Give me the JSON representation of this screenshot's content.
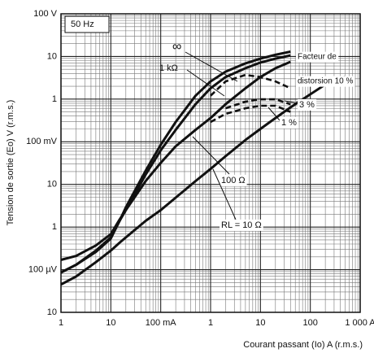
{
  "chart_data": {
    "type": "line",
    "y_label": "Tension de sortie (Eo) V (r.m.s.)",
    "x_label": "Courant passant (Io) A (r.m.s.)",
    "x_scale": "log",
    "y_scale": "log",
    "grid": true,
    "minor_grid": true,
    "xlim": [
      0.001,
      1000
    ],
    "ylim": [
      1e-05,
      100
    ],
    "xticks": [
      {
        "value": 0.001,
        "label": "1"
      },
      {
        "value": 0.01,
        "label": "10"
      },
      {
        "value": 0.1,
        "label": "100 mA"
      },
      1,
      10,
      100,
      {
        "value": 1000,
        "label": "1 000 A"
      }
    ],
    "yticks": [
      {
        "value": 1e-05,
        "label": "10"
      },
      {
        "value": 0.0001,
        "label": "100 µV"
      },
      {
        "value": 0.001,
        "label": "1"
      },
      {
        "value": 0.01,
        "label": "10"
      },
      {
        "value": 0.1,
        "label": "100 mV"
      },
      1,
      10,
      {
        "value": 100,
        "label": "100 V"
      }
    ],
    "annotations": [
      "50 Hz",
      "Facteur de",
      "distorsion 10 %"
    ],
    "x": [
      0.001,
      0.002,
      0.005,
      0.01,
      0.015,
      0.02,
      0.05,
      0.1,
      0.2,
      0.5,
      1,
      2,
      5,
      10,
      20,
      40,
      100,
      200,
      500
    ],
    "series": [
      {
        "name": "∞",
        "color": "#111111",
        "dash": false,
        "values": [
          8.6e-05,
          0.00013,
          0.00026,
          0.00054,
          0.0014,
          0.0029,
          0.021,
          0.085,
          0.29,
          1.2,
          2.6,
          4.4,
          6.9,
          8.9,
          11,
          13,
          null,
          null,
          null
        ]
      },
      {
        "name": "1 kΩ",
        "color": "#111111",
        "dash": false,
        "values": [
          8.6e-05,
          0.00013,
          0.00028,
          0.00057,
          0.0014,
          0.0025,
          0.017,
          0.063,
          0.19,
          0.76,
          1.8,
          3.3,
          5.3,
          7.2,
          8.9,
          10.6,
          null,
          null,
          null
        ]
      },
      {
        "name": "100 Ω",
        "color": "#111111",
        "dash": false,
        "values": [
          0.00017,
          0.00021,
          0.00037,
          0.00068,
          0.0015,
          0.0025,
          0.012,
          0.032,
          0.078,
          0.19,
          0.36,
          0.76,
          1.8,
          3.3,
          5.3,
          7.5,
          null,
          null,
          null
        ]
      },
      {
        "name": "RL = 10 Ω",
        "color": "#111111",
        "dash": false,
        "values": [
          4.5e-05,
          6.9e-05,
          0.00015,
          0.00028,
          0.00043,
          0.00057,
          0.0014,
          0.0025,
          0.0049,
          0.012,
          0.023,
          0.046,
          0.11,
          0.2,
          0.36,
          0.64,
          1.3,
          2.2,
          3.3
        ]
      },
      {
        "color": "#111111",
        "dash": true,
        "values": [
          null,
          null,
          null,
          null,
          null,
          null,
          null,
          null,
          null,
          null,
          1.2,
          2.6,
          3.7,
          3.3,
          2.6,
          1.8,
          null,
          null,
          null
        ]
      },
      {
        "name": "3 %",
        "color": "#111111",
        "dash": true,
        "values": [
          null,
          null,
          null,
          null,
          null,
          null,
          null,
          null,
          null,
          null,
          null,
          0.61,
          0.87,
          0.99,
          0.99,
          0.76,
          null,
          null,
          null
        ]
      },
      {
        "name": "1 %",
        "color": "#111111",
        "dash": true,
        "values": [
          null,
          null,
          null,
          null,
          null,
          null,
          null,
          null,
          null,
          null,
          0.29,
          0.45,
          0.61,
          0.7,
          0.7,
          0.5,
          null,
          null,
          null
        ]
      }
    ]
  }
}
